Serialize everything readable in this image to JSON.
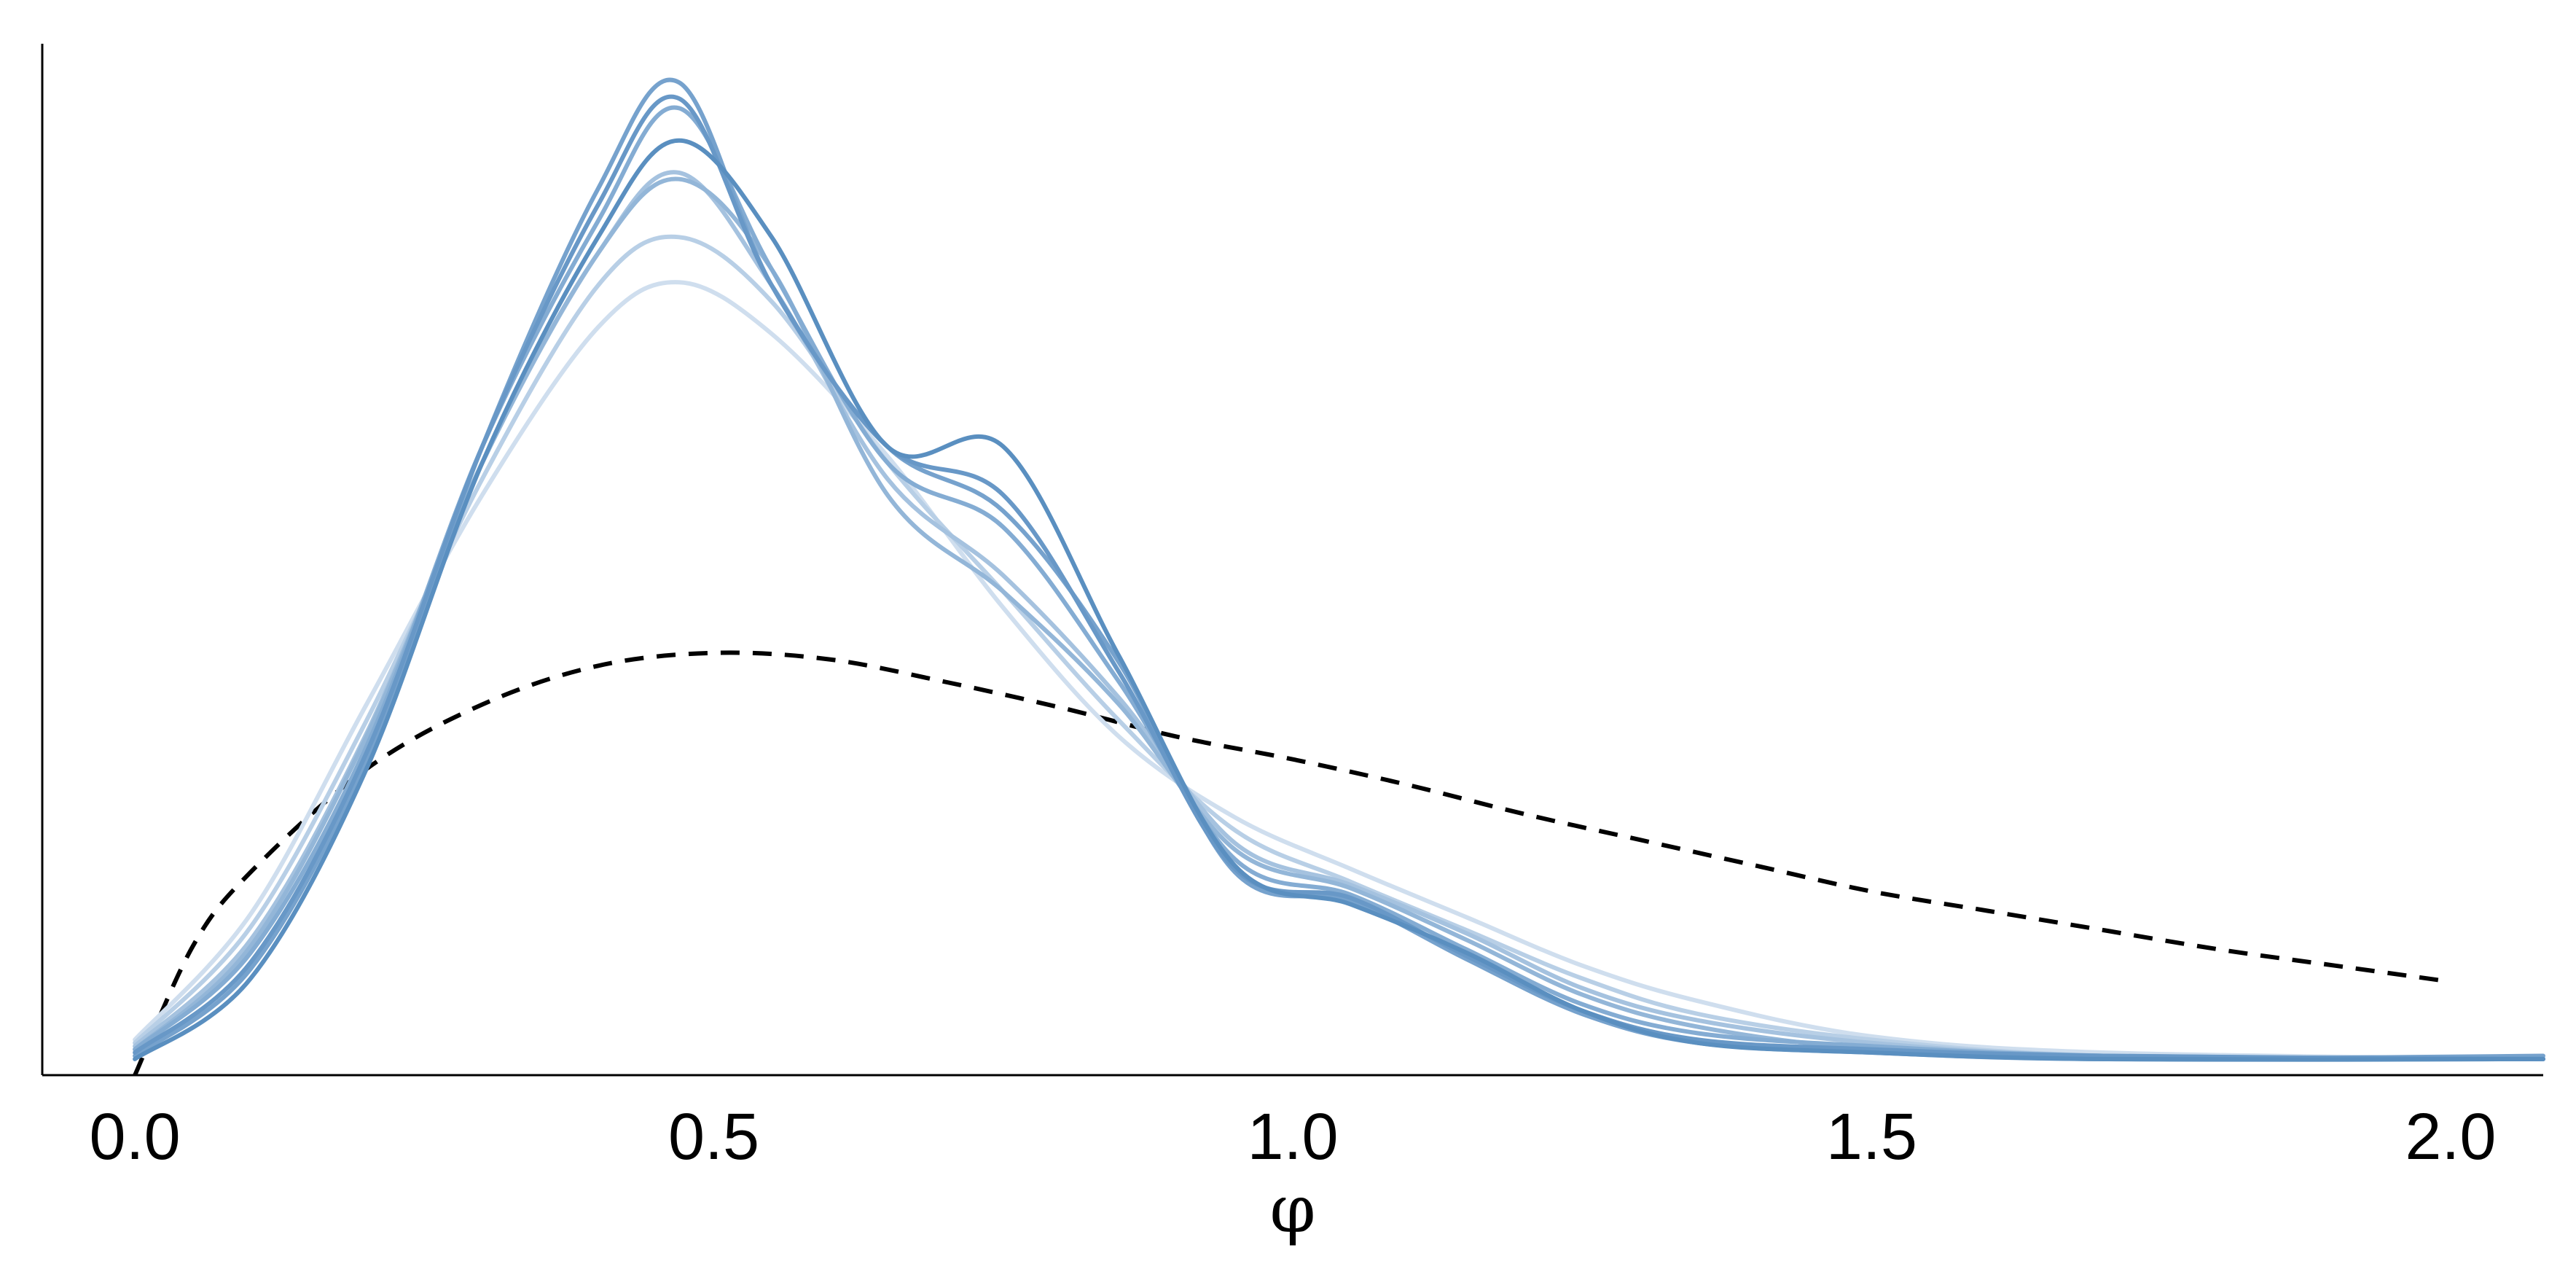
{
  "chart_data": {
    "type": "line",
    "title": "",
    "xlabel": "φ",
    "ylabel": "",
    "xlim": [
      -0.08,
      2.08
    ],
    "ylim": [
      0,
      3.2
    ],
    "xticks": [
      "0.0",
      "0.5",
      "1.0",
      "1.5",
      "2.0"
    ],
    "xtick_values": [
      0.0,
      0.5,
      1.0,
      1.5,
      2.0
    ],
    "grid": false,
    "legend": "none",
    "x": [
      0.0,
      0.1,
      0.2,
      0.3,
      0.4,
      0.47,
      0.55,
      0.65,
      0.75,
      0.85,
      0.95,
      1.05,
      1.15,
      1.25,
      1.35,
      1.5,
      1.7,
      2.08
    ],
    "series": [
      {
        "color": "#5a8fc0",
        "values": [
          0.05,
          0.3,
          0.95,
          1.9,
          2.6,
          2.9,
          2.6,
          1.95,
          1.95,
          1.3,
          0.65,
          0.53,
          0.38,
          0.2,
          0.1,
          0.07,
          0.05,
          0.05
        ]
      },
      {
        "color": "#6898c7",
        "values": [
          0.07,
          0.35,
          1.0,
          1.95,
          2.7,
          3.03,
          2.45,
          1.95,
          1.8,
          1.25,
          0.64,
          0.55,
          0.37,
          0.2,
          0.11,
          0.08,
          0.06,
          0.05
        ]
      },
      {
        "color": "#76a2cd",
        "values": [
          0.06,
          0.33,
          0.98,
          1.95,
          2.75,
          3.08,
          2.45,
          1.95,
          1.75,
          1.28,
          0.63,
          0.54,
          0.36,
          0.19,
          0.1,
          0.07,
          0.05,
          0.06
        ]
      },
      {
        "color": "#84acd3",
        "values": [
          0.08,
          0.38,
          1.02,
          1.95,
          2.65,
          3.0,
          2.5,
          1.9,
          1.7,
          1.22,
          0.67,
          0.56,
          0.39,
          0.22,
          0.13,
          0.09,
          0.06,
          0.05
        ]
      },
      {
        "color": "#93b6d8",
        "values": [
          0.08,
          0.4,
          1.05,
          1.9,
          2.55,
          2.78,
          2.5,
          1.8,
          1.5,
          1.15,
          0.7,
          0.58,
          0.42,
          0.25,
          0.15,
          0.08,
          0.05,
          0.05
        ]
      },
      {
        "color": "#a5c2df",
        "values": [
          0.09,
          0.42,
          1.06,
          1.9,
          2.55,
          2.8,
          2.45,
          1.85,
          1.55,
          1.17,
          0.72,
          0.59,
          0.44,
          0.27,
          0.17,
          0.1,
          0.06,
          0.05
        ]
      },
      {
        "color": "#b8cfe6",
        "values": [
          0.1,
          0.46,
          1.1,
          1.85,
          2.45,
          2.6,
          2.4,
          1.9,
          1.5,
          1.1,
          0.76,
          0.6,
          0.45,
          0.3,
          0.19,
          0.11,
          0.06,
          0.05
        ]
      },
      {
        "color": "#cfdeee",
        "values": [
          0.11,
          0.5,
          1.15,
          1.8,
          2.32,
          2.46,
          2.3,
          1.92,
          1.45,
          1.05,
          0.8,
          0.64,
          0.49,
          0.34,
          0.23,
          0.12,
          0.07,
          0.05
        ]
      },
      {
        "color": "#000000",
        "dashed": true,
        "x": [
          0.0,
          0.05,
          0.1,
          0.2,
          0.3,
          0.4,
          0.5,
          0.6,
          0.7,
          0.8,
          0.9,
          1.0,
          1.1,
          1.2,
          1.3,
          1.4,
          1.5,
          1.6,
          1.7,
          1.8,
          1.9,
          2.0
        ],
        "values": [
          0.0,
          0.4,
          0.63,
          0.95,
          1.15,
          1.27,
          1.31,
          1.29,
          1.22,
          1.14,
          1.05,
          0.98,
          0.9,
          0.81,
          0.73,
          0.65,
          0.57,
          0.51,
          0.45,
          0.39,
          0.34,
          0.29
        ]
      }
    ]
  }
}
